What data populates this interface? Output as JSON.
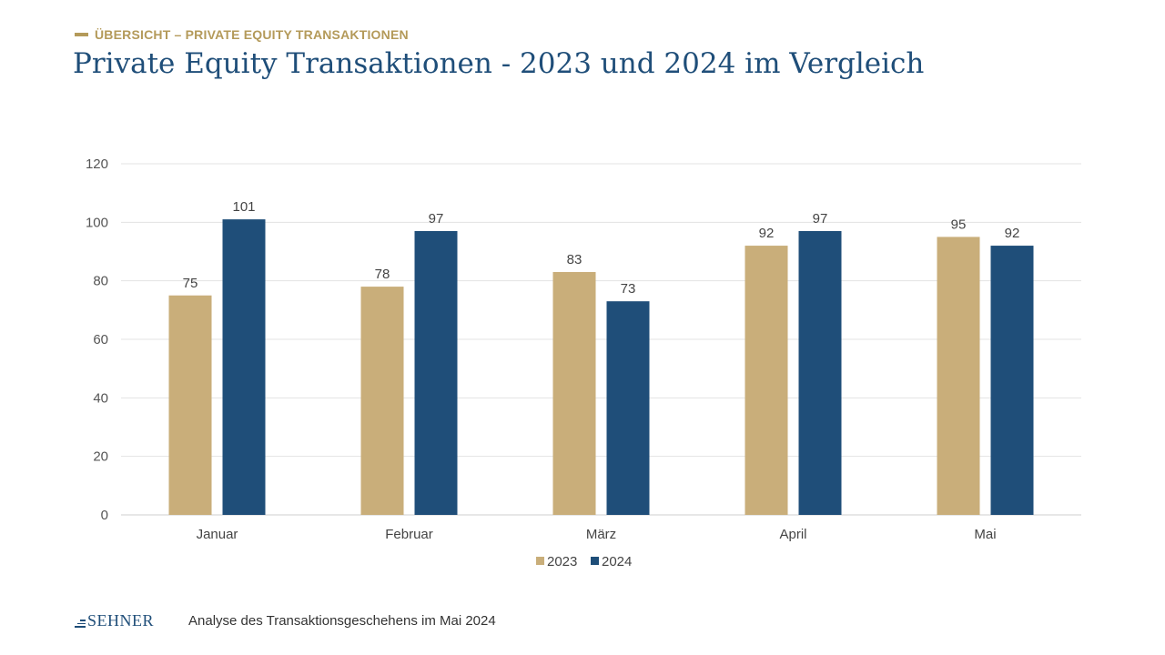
{
  "header": {
    "kicker": "ÜBERSICHT – PRIVATE EQUITY TRANSAKTIONEN",
    "title": "Private Equity Transaktionen - 2023 und 2024 im Vergleich"
  },
  "chart_data": {
    "type": "bar",
    "categories": [
      "Januar",
      "Februar",
      "März",
      "April",
      "Mai"
    ],
    "series": [
      {
        "name": "2023",
        "values": [
          75,
          78,
          83,
          92,
          95
        ],
        "color": "#c9ae7a"
      },
      {
        "name": "2024",
        "values": [
          101,
          97,
          73,
          97,
          92
        ],
        "color": "#1f4e79"
      }
    ],
    "ylim": [
      0,
      120
    ],
    "yticks": [
      0,
      20,
      40,
      60,
      80,
      100,
      120
    ],
    "grid": true,
    "legend": "bottom-center",
    "data_labels": true
  },
  "footer": {
    "logo": "SEHNER",
    "text": "Analyse des Transaktionsgeschehens im Mai 2024"
  },
  "colors": {
    "accent_gold": "#b49a5a",
    "brand_blue": "#1f4e79"
  }
}
